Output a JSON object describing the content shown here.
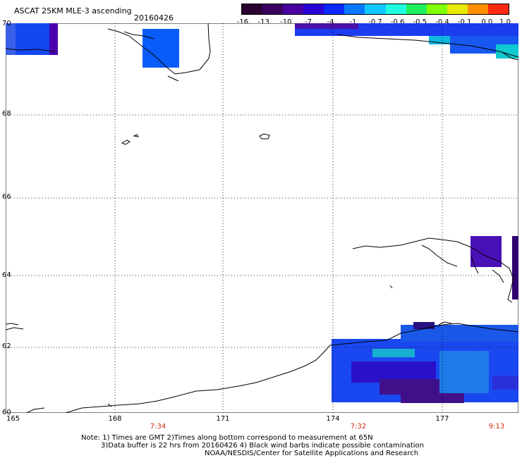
{
  "title": "ASCAT 25KM MLE-3 ascending",
  "date": "20160426",
  "colorbar": {
    "labels": [
      "-16",
      "-13",
      "-10",
      "-7",
      "-4",
      "-1",
      "-0.7",
      "-0.6",
      "-0.5",
      "-0.4",
      "-0.1",
      "0.0",
      "1.0"
    ],
    "colors": [
      "#2a0030",
      "#3a0060",
      "#4a00a0",
      "#2a00d8",
      "#0a28ff",
      "#0a78ff",
      "#10c8ff",
      "#20ffe0",
      "#20f060",
      "#80ff00",
      "#e8e800",
      "#ff9000",
      "#ff2810"
    ]
  },
  "latitude_labels": [
    "70",
    "68",
    "66",
    "64",
    "62",
    "60"
  ],
  "longitude_labels": [
    "165",
    "168",
    "171",
    "174",
    "177"
  ],
  "time_labels": [
    "7:34",
    "7:32",
    "9:13"
  ],
  "notes": {
    "line1": "Note: 1) Times are GMT 2)Times along bottom correspond to measurement at 65N",
    "line2": "3)Data buffer is 22 hrs from 20160426 4) Black wind barbs indicate possible contamination",
    "line3": "NOAA/NESDIS/Center for Satellite Applications and Research"
  }
}
